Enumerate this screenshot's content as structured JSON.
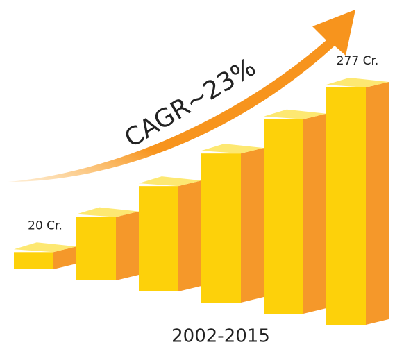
{
  "chart_data": {
    "type": "bar3d",
    "annotation": "CAGR~23%",
    "caption": "2002-2015",
    "values": [
      20,
      74,
      123,
      174,
      227,
      277
    ],
    "value_labels": [
      "20 Cr.",
      null,
      null,
      null,
      null,
      "277 Cr."
    ],
    "color": "#fdd10a"
  }
}
